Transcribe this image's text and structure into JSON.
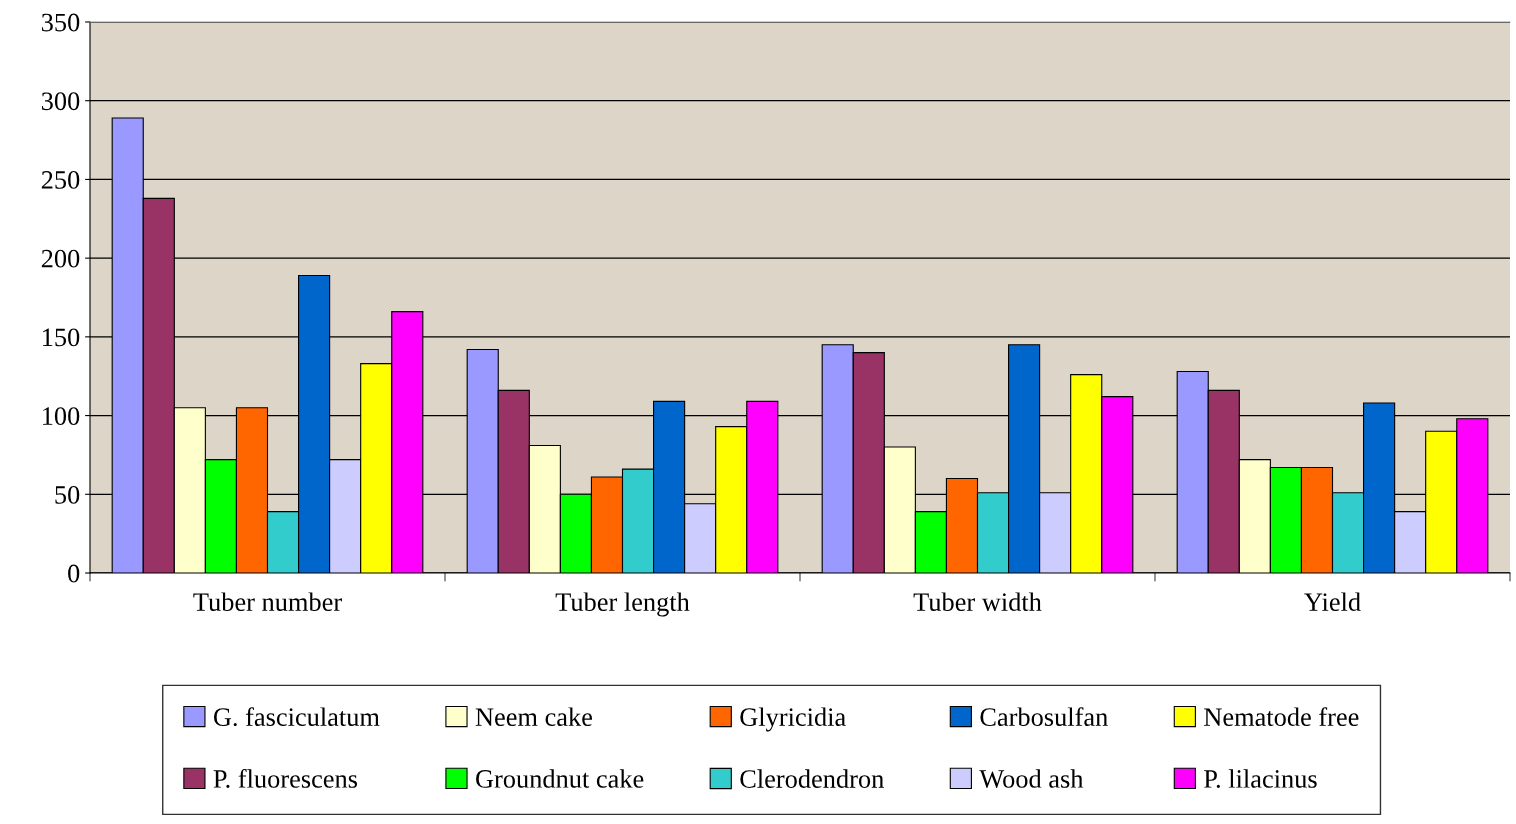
{
  "chart_data": {
    "type": "bar",
    "categories": [
      "Tuber number",
      "Tuber length",
      "Tuber width",
      "Yield"
    ],
    "ylim": [
      0,
      350
    ],
    "yticks": [
      0,
      50,
      100,
      150,
      200,
      250,
      300,
      350
    ],
    "grid": "y",
    "legend": "bottom",
    "series": [
      {
        "name": "G. fasciculatum",
        "color": "#9999ff",
        "values": [
          289,
          142,
          145,
          128
        ]
      },
      {
        "name": "P. fluorescens",
        "color": "#993366",
        "values": [
          238,
          116,
          140,
          116
        ]
      },
      {
        "name": "Neem cake",
        "color": "#ffffcc",
        "values": [
          105,
          81,
          80,
          72
        ]
      },
      {
        "name": "Groundnut cake",
        "color": "#00ff00",
        "values": [
          72,
          50,
          39,
          67
        ]
      },
      {
        "name": "Glyricidia",
        "color": "#ff6600",
        "values": [
          105,
          61,
          60,
          67
        ]
      },
      {
        "name": "Clerodendron",
        "color": "#33cccc",
        "values": [
          39,
          66,
          51,
          51
        ]
      },
      {
        "name": "Carbosulfan",
        "color": "#0066cc",
        "values": [
          189,
          109,
          145,
          108
        ]
      },
      {
        "name": "Wood ash",
        "color": "#ccccff",
        "values": [
          72,
          44,
          51,
          39
        ]
      },
      {
        "name": "Nematode free",
        "color": "#ffff00",
        "values": [
          133,
          93,
          126,
          90
        ]
      },
      {
        "name": "P. lilacinus",
        "color": "#ff00ff",
        "values": [
          166,
          109,
          112,
          98
        ]
      }
    ]
  }
}
